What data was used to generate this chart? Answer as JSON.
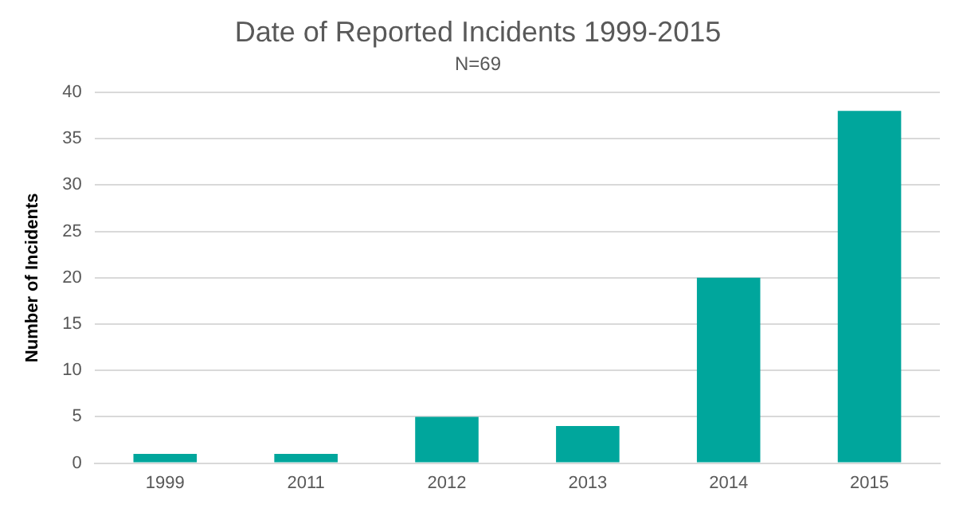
{
  "chart_data": {
    "type": "bar",
    "title": "Date of Reported Incidents 1999-2015",
    "subtitle": "N=69",
    "ylabel": "Number of Incidents",
    "categories": [
      "1999",
      "2011",
      "2012",
      "2013",
      "2014",
      "2015"
    ],
    "values": [
      1,
      1,
      5,
      4,
      20,
      38
    ],
    "color": "#00a69c",
    "ylim": [
      0,
      40
    ],
    "yticks": [
      0,
      5,
      10,
      15,
      20,
      25,
      30,
      35,
      40
    ],
    "grid": "y",
    "legend": false
  }
}
